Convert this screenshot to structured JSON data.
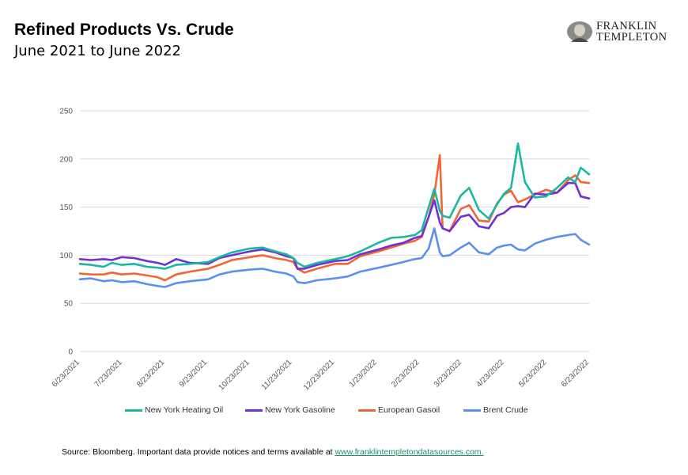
{
  "header": {
    "title": "Refined Products Vs. Crude",
    "subtitle": "June 2021 to June 2022"
  },
  "logo": {
    "line1": "FRANKLIN",
    "line2": "TEMPLETON"
  },
  "footer": {
    "source_text": "Source: Bloomberg. Important data provide notices and terms available at ",
    "source_link": "www.franklintempletondatasources.com."
  },
  "colors": {
    "heating_oil": "#1ab8a0",
    "gasoline": "#7030d8",
    "gasoil": "#f26535",
    "brent": "#5b8ff0",
    "grid": "#d9d9d9"
  },
  "chart_data": {
    "type": "line",
    "ylim": [
      0,
      250
    ],
    "yticks": [
      0,
      50,
      100,
      150,
      200,
      250
    ],
    "xtick_labels": [
      "6/23/2021",
      "7/23/2021",
      "8/23/2021",
      "9/23/2021",
      "10/23/2021",
      "11/23/2021",
      "12/23/2021",
      "1/23/2022",
      "2/23/2022",
      "3/23/2022",
      "4/23/2022",
      "5/23/2022",
      "6/23/2022"
    ],
    "grid": "horizontal",
    "legend_position": "bottom",
    "x": [
      "2021-06-23",
      "2021-07-01",
      "2021-07-10",
      "2021-07-16",
      "2021-07-23",
      "2021-08-01",
      "2021-08-10",
      "2021-08-18",
      "2021-08-23",
      "2021-08-31",
      "2021-09-10",
      "2021-09-23",
      "2021-10-01",
      "2021-10-10",
      "2021-10-23",
      "2021-11-01",
      "2021-11-10",
      "2021-11-18",
      "2021-11-23",
      "2021-11-26",
      "2021-12-01",
      "2021-12-10",
      "2021-12-23",
      "2022-01-01",
      "2022-01-10",
      "2022-01-23",
      "2022-02-01",
      "2022-02-10",
      "2022-02-18",
      "2022-02-23",
      "2022-02-28",
      "2022-03-04",
      "2022-03-08",
      "2022-03-10",
      "2022-03-15",
      "2022-03-23",
      "2022-03-29",
      "2022-04-05",
      "2022-04-12",
      "2022-04-18",
      "2022-04-23",
      "2022-04-28",
      "2022-05-03",
      "2022-05-08",
      "2022-05-15",
      "2022-05-23",
      "2022-05-31",
      "2022-06-08",
      "2022-06-13",
      "2022-06-17",
      "2022-06-23"
    ],
    "series": [
      {
        "name": "New York Heating Oil",
        "values": [
          91,
          90,
          88,
          92,
          90,
          91,
          88,
          87,
          86,
          90,
          91,
          93,
          98,
          103,
          107,
          108,
          104,
          101,
          97,
          92,
          88,
          92,
          96,
          99,
          104,
          113,
          118,
          119,
          121,
          126,
          150,
          169,
          146,
          141,
          139,
          162,
          170,
          147,
          138,
          153,
          164,
          170,
          216,
          176,
          160,
          161,
          170,
          181,
          176,
          191,
          184
        ]
      },
      {
        "name": "New York Gasoline",
        "values": [
          96,
          95,
          96,
          95,
          98,
          97,
          94,
          92,
          90,
          96,
          92,
          91,
          97,
          100,
          104,
          106,
          103,
          99,
          97,
          86,
          86,
          90,
          94,
          95,
          101,
          106,
          110,
          113,
          118,
          120,
          140,
          157,
          134,
          128,
          125,
          140,
          142,
          130,
          128,
          141,
          144,
          150,
          151,
          150,
          164,
          163,
          165,
          175,
          175,
          161,
          159
        ]
      },
      {
        "name": "European Gasoil",
        "values": [
          81,
          80,
          80,
          82,
          80,
          81,
          79,
          77,
          74,
          80,
          83,
          86,
          90,
          95,
          98,
          100,
          97,
          95,
          93,
          86,
          82,
          86,
          91,
          91,
          99,
          104,
          108,
          112,
          115,
          119,
          140,
          163,
          204,
          128,
          125,
          148,
          152,
          136,
          135,
          154,
          163,
          167,
          155,
          158,
          163,
          168,
          165,
          178,
          183,
          176,
          175
        ]
      },
      {
        "name": "Brent Crude",
        "values": [
          75,
          76,
          73,
          74,
          72,
          73,
          70,
          68,
          67,
          71,
          73,
          75,
          80,
          83,
          85,
          86,
          83,
          81,
          78,
          72,
          71,
          74,
          76,
          78,
          83,
          87,
          90,
          93,
          96,
          97,
          107,
          128,
          103,
          99,
          100,
          108,
          113,
          103,
          101,
          108,
          110,
          111,
          106,
          105,
          112,
          116,
          119,
          121,
          122,
          116,
          111
        ]
      }
    ]
  }
}
